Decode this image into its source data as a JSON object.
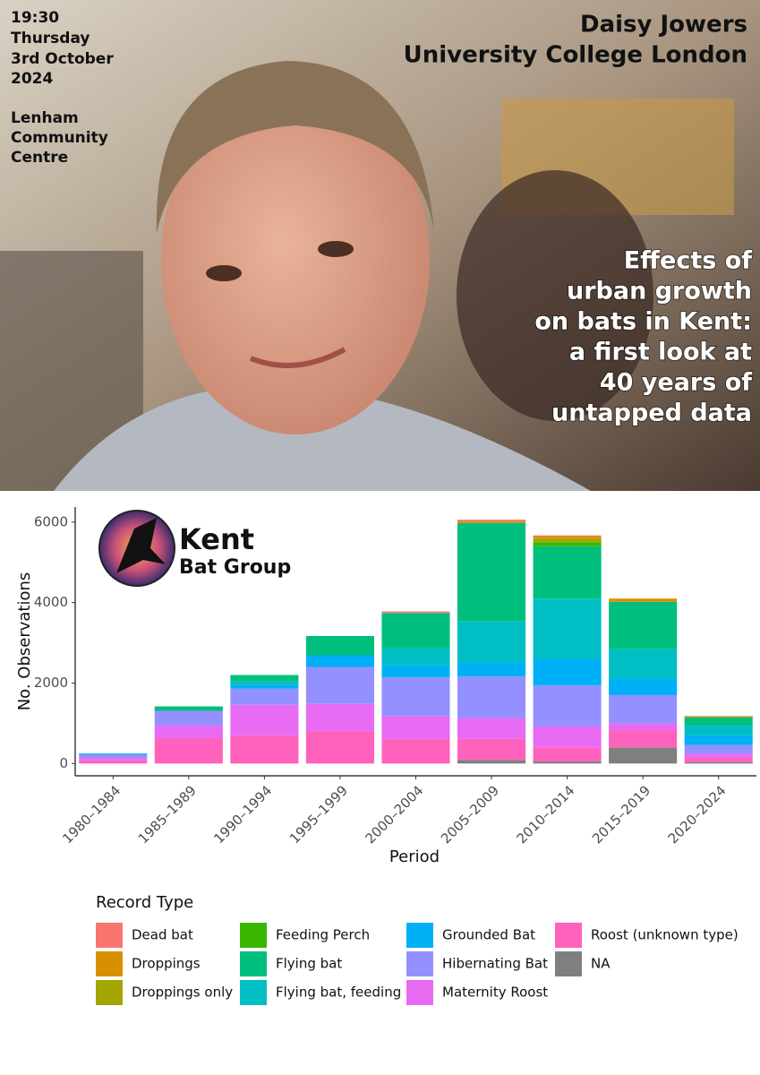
{
  "poster": {
    "event_lines": [
      "19:30",
      "Thursday",
      "3rd October",
      "2024"
    ],
    "venue_lines": [
      "Lenham",
      "Community",
      "Centre"
    ],
    "speaker": "Daisy Jowers",
    "affiliation": "University College London",
    "talk_title_lines": [
      "Effects of",
      "urban growth",
      "on bats in Kent:",
      "a first look at",
      "40 years of",
      "untapped data"
    ],
    "logo": {
      "name": "Kent",
      "subtitle": "Bat Group"
    }
  },
  "chart_data": {
    "type": "stacked-bar",
    "x_label": "Period",
    "y_label": "No. Observations",
    "legend_title": "Record Type",
    "categories": [
      "1980–1984",
      "1985–1989",
      "1990–1994",
      "1995–1999",
      "2000–2004",
      "2005–2009",
      "2010–2014",
      "2015–2019",
      "2020–2024"
    ],
    "ylim": [
      -305,
      6375
    ],
    "yticks": [
      0,
      2000,
      4000,
      6000
    ],
    "grid": false,
    "series": [
      {
        "name": "Dead bat",
        "color": "#F8766D",
        "values": [
          0,
          0,
          0,
          0,
          40,
          40,
          20,
          0,
          0
        ]
      },
      {
        "name": "Droppings",
        "color": "#D89000",
        "values": [
          0,
          0,
          0,
          0,
          0,
          40,
          50,
          80,
          30
        ]
      },
      {
        "name": "Droppings only",
        "color": "#A3A500",
        "values": [
          0,
          0,
          0,
          0,
          0,
          0,
          100,
          0,
          0
        ]
      },
      {
        "name": "Feeding Perch",
        "color": "#39B600",
        "values": [
          0,
          0,
          0,
          0,
          0,
          0,
          100,
          0,
          0
        ]
      },
      {
        "name": "Flying bat",
        "color": "#00BF7D",
        "values": [
          0,
          110,
          160,
          480,
          860,
          2440,
          1300,
          1180,
          210
        ]
      },
      {
        "name": "Flying bat, feeding",
        "color": "#00BFC4",
        "values": [
          0,
          0,
          80,
          0,
          430,
          1030,
          1500,
          720,
          240
        ]
      },
      {
        "name": "Grounded Bat",
        "color": "#00B0F6",
        "values": [
          20,
          0,
          100,
          290,
          310,
          350,
          660,
          420,
          240
        ]
      },
      {
        "name": "Hibernating Bat",
        "color": "#9590FF",
        "values": [
          100,
          370,
          400,
          920,
          960,
          1030,
          1020,
          700,
          220
        ]
      },
      {
        "name": "Maternity Roost",
        "color": "#E76BF3",
        "values": [
          50,
          310,
          760,
          680,
          580,
          520,
          520,
          170,
          90
        ]
      },
      {
        "name": "Roost (unknown type)",
        "color": "#FF62BC",
        "values": [
          80,
          630,
          700,
          800,
          600,
          520,
          350,
          430,
          120
        ]
      },
      {
        "name": "NA",
        "color": "#7F7F7F",
        "values": [
          0,
          0,
          0,
          0,
          0,
          90,
          50,
          400,
          30
        ]
      }
    ]
  }
}
